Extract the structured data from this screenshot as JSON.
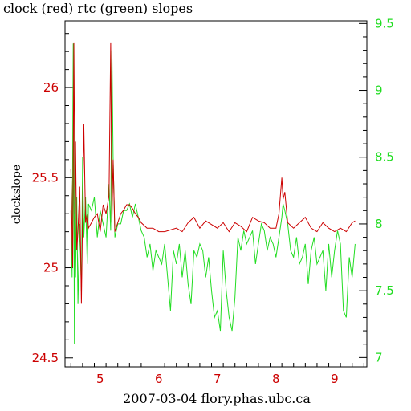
{
  "chart_data": {
    "type": "line",
    "title": "clock (red) rtc (green) slopes",
    "xlabel": "2007-03-04 flory.phas.ubc.ca",
    "ylabel": "clockslope",
    "xlim": [
      4.4,
      9.55
    ],
    "ylim_left": [
      24.45,
      26.37
    ],
    "ylim_right": [
      6.93,
      9.52
    ],
    "x_ticks": [
      5,
      6,
      7,
      8,
      9
    ],
    "y_ticks_left": [
      24.5,
      25,
      25.5,
      26
    ],
    "y_ticks_right": [
      7,
      7.5,
      8,
      8.5,
      9,
      9.5
    ],
    "tick_labels_left": [
      "24.5",
      "25",
      "25.5",
      "26"
    ],
    "tick_labels_right": [
      "7",
      "7.5",
      "8",
      "8.5",
      "9",
      "9.5"
    ],
    "tick_labels_bottom": [
      "5",
      "6",
      "7",
      "8",
      "9"
    ],
    "colors": {
      "left_axis": "#cc0000",
      "right_axis": "#22dd22",
      "axes": "#000000"
    },
    "series": [
      {
        "name": "clock (red)",
        "axis": "left",
        "color": "#cc0000",
        "x": [
          4.5,
          4.53,
          4.55,
          4.57,
          4.58,
          4.6,
          4.62,
          4.65,
          4.68,
          4.7,
          4.72,
          4.75,
          4.78,
          4.8,
          4.85,
          4.9,
          4.95,
          5.0,
          5.05,
          5.1,
          5.15,
          5.18,
          5.2,
          5.22,
          5.25,
          5.3,
          5.35,
          5.4,
          5.45,
          5.5,
          5.55,
          5.6,
          5.65,
          5.7,
          5.8,
          5.9,
          6.0,
          6.1,
          6.2,
          6.3,
          6.4,
          6.5,
          6.6,
          6.7,
          6.8,
          6.9,
          7.0,
          7.1,
          7.2,
          7.3,
          7.4,
          7.5,
          7.6,
          7.7,
          7.8,
          7.9,
          8.0,
          8.05,
          8.1,
          8.12,
          8.15,
          8.2,
          8.3,
          8.4,
          8.5,
          8.6,
          8.7,
          8.8,
          8.9,
          9.0,
          9.1,
          9.2,
          9.3,
          9.35
        ],
        "y": [
          25.55,
          25.0,
          26.25,
          25.3,
          25.7,
          25.1,
          25.2,
          25.45,
          24.8,
          25.3,
          25.8,
          25.25,
          25.3,
          25.22,
          25.25,
          25.28,
          25.3,
          25.2,
          25.35,
          25.3,
          25.4,
          26.25,
          25.25,
          25.6,
          25.2,
          25.25,
          25.3,
          25.32,
          25.35,
          25.35,
          25.33,
          25.3,
          25.28,
          25.25,
          25.22,
          25.22,
          25.2,
          25.2,
          25.21,
          25.22,
          25.2,
          25.25,
          25.28,
          25.22,
          25.26,
          25.24,
          25.22,
          25.25,
          25.2,
          25.25,
          25.23,
          25.2,
          25.28,
          25.26,
          25.25,
          25.22,
          25.22,
          25.3,
          25.5,
          25.38,
          25.42,
          25.25,
          25.22,
          25.25,
          25.28,
          25.22,
          25.2,
          25.25,
          25.22,
          25.2,
          25.22,
          25.2,
          25.25,
          25.26
        ]
      },
      {
        "name": "rtc (green)",
        "axis": "right",
        "color": "#22dd22",
        "x": [
          4.5,
          4.52,
          4.54,
          4.56,
          4.57,
          4.58,
          4.6,
          4.62,
          4.65,
          4.68,
          4.7,
          4.72,
          4.75,
          4.78,
          4.8,
          4.85,
          4.9,
          4.95,
          5.0,
          5.05,
          5.1,
          5.15,
          5.18,
          5.2,
          5.22,
          5.25,
          5.3,
          5.35,
          5.4,
          5.45,
          5.5,
          5.55,
          5.6,
          5.65,
          5.7,
          5.75,
          5.8,
          5.85,
          5.9,
          5.95,
          6.0,
          6.05,
          6.1,
          6.15,
          6.2,
          6.25,
          6.3,
          6.35,
          6.4,
          6.45,
          6.5,
          6.55,
          6.6,
          6.65,
          6.7,
          6.75,
          6.8,
          6.85,
          6.9,
          6.95,
          7.0,
          7.05,
          7.1,
          7.15,
          7.2,
          7.25,
          7.3,
          7.35,
          7.4,
          7.45,
          7.5,
          7.55,
          7.6,
          7.65,
          7.7,
          7.75,
          7.8,
          7.85,
          7.9,
          7.95,
          8.0,
          8.05,
          8.1,
          8.12,
          8.15,
          8.2,
          8.25,
          8.3,
          8.35,
          8.4,
          8.45,
          8.5,
          8.55,
          8.6,
          8.65,
          8.7,
          8.75,
          8.8,
          8.85,
          8.9,
          8.95,
          9.0,
          9.05,
          9.1,
          9.15,
          9.2,
          9.25,
          9.3,
          9.35
        ],
        "y": [
          8.1,
          7.6,
          9.35,
          7.1,
          8.9,
          7.6,
          8.2,
          7.4,
          8.0,
          7.5,
          8.5,
          7.9,
          8.2,
          7.7,
          8.15,
          8.1,
          8.2,
          7.9,
          8.1,
          8.0,
          7.9,
          8.3,
          7.95,
          9.3,
          8.5,
          7.9,
          8.0,
          8.0,
          8.1,
          8.1,
          8.15,
          8.05,
          8.15,
          8.05,
          7.95,
          7.9,
          7.75,
          7.85,
          7.65,
          7.8,
          7.75,
          7.7,
          7.85,
          7.6,
          7.35,
          7.8,
          7.7,
          7.85,
          7.6,
          7.8,
          7.55,
          7.4,
          7.8,
          7.75,
          7.85,
          7.8,
          7.6,
          7.75,
          7.5,
          7.3,
          7.35,
          7.2,
          7.8,
          7.5,
          7.3,
          7.2,
          7.45,
          7.9,
          7.8,
          7.95,
          7.85,
          7.9,
          7.95,
          7.7,
          7.85,
          8.0,
          7.95,
          7.8,
          7.9,
          7.85,
          7.75,
          7.9,
          8.05,
          8.15,
          8.1,
          8.0,
          7.8,
          7.75,
          7.9,
          7.7,
          7.75,
          7.85,
          7.55,
          7.8,
          7.9,
          7.7,
          7.75,
          7.8,
          7.5,
          7.85,
          7.6,
          7.8,
          7.95,
          7.85,
          7.35,
          7.3,
          7.75,
          7.6,
          7.85
        ]
      }
    ]
  }
}
